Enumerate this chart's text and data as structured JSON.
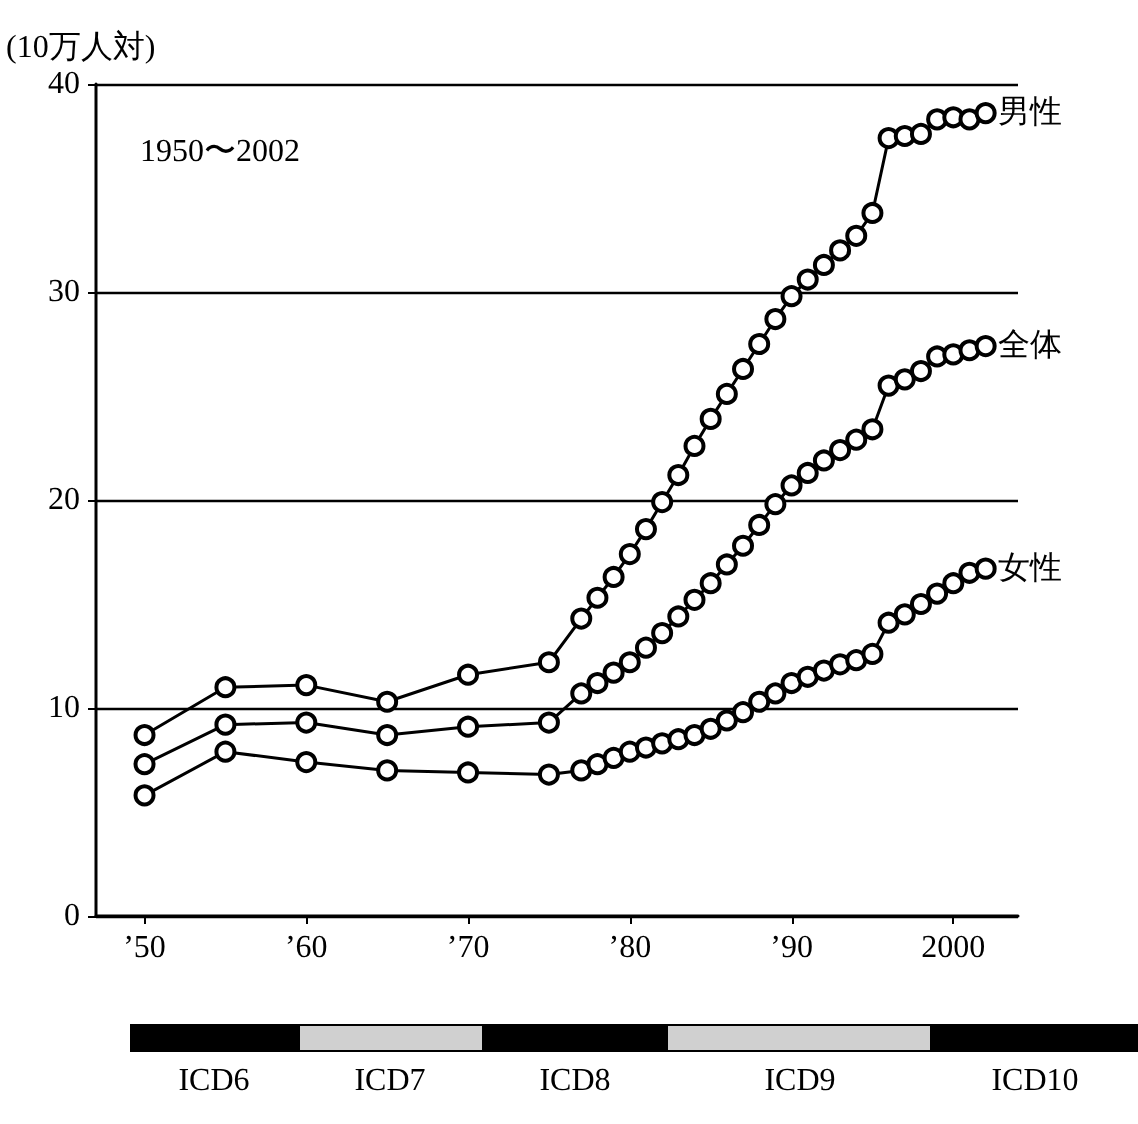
{
  "chart_data": [
    {
      "type": "line",
      "ylabel": "(10万人対)",
      "annotations": [
        "1950〜2002"
      ],
      "x": [
        1950,
        1955,
        1960,
        1965,
        1970,
        1975,
        1977,
        1978,
        1979,
        1980,
        1981,
        1982,
        1983,
        1984,
        1985,
        1986,
        1987,
        1988,
        1989,
        1990,
        1991,
        1992,
        1993,
        1994,
        1995,
        1996,
        1997,
        1998,
        1999,
        2000,
        2001,
        2002
      ],
      "series": [
        {
          "name": "男性",
          "color": "#000000",
          "values": [
            8.7,
            11.0,
            11.1,
            10.3,
            11.6,
            12.2,
            14.3,
            15.3,
            16.3,
            17.4,
            18.6,
            19.9,
            21.2,
            22.6,
            23.9,
            25.1,
            26.3,
            27.5,
            28.7,
            29.8,
            30.6,
            31.3,
            32.0,
            32.7,
            33.8,
            37.4,
            37.5,
            37.6,
            38.3,
            38.4,
            38.3,
            38.6
          ]
        },
        {
          "name": "全体",
          "color": "#000000",
          "values": [
            7.3,
            9.2,
            9.3,
            8.7,
            9.1,
            9.3,
            10.7,
            11.2,
            11.7,
            12.2,
            12.9,
            13.6,
            14.4,
            15.2,
            16.0,
            16.9,
            17.8,
            18.8,
            19.8,
            20.7,
            21.3,
            21.9,
            22.4,
            22.9,
            23.4,
            25.5,
            25.8,
            26.2,
            26.9,
            27.0,
            27.2,
            27.4
          ]
        },
        {
          "name": "女性",
          "color": "#000000",
          "values": [
            5.8,
            7.9,
            7.4,
            7.0,
            6.9,
            6.8,
            7.0,
            7.3,
            7.6,
            7.9,
            8.1,
            8.3,
            8.5,
            8.7,
            9.0,
            9.4,
            9.8,
            10.3,
            10.7,
            11.2,
            11.5,
            11.8,
            12.1,
            12.3,
            12.6,
            14.1,
            14.5,
            15.0,
            15.5,
            16.0,
            16.5,
            16.7
          ]
        }
      ],
      "xlim": [
        1947,
        2004
      ],
      "xticks": [
        {
          "value": 1950,
          "label": "’50"
        },
        {
          "value": 1960,
          "label": "’60"
        },
        {
          "value": 1970,
          "label": "’70"
        },
        {
          "value": 1980,
          "label": "’80"
        },
        {
          "value": 1990,
          "label": "’90"
        },
        2000
      ],
      "ylim": [
        0,
        40
      ],
      "yticks": [
        0,
        10,
        20,
        30,
        40
      ],
      "grid": "y",
      "legend": false,
      "marker": "circle",
      "line_style": "solid"
    },
    {
      "type": "other",
      "annotations": [
        "ICD6",
        "ICD7",
        "ICD8",
        "ICD9",
        "ICD10"
      ]
    }
  ]
}
